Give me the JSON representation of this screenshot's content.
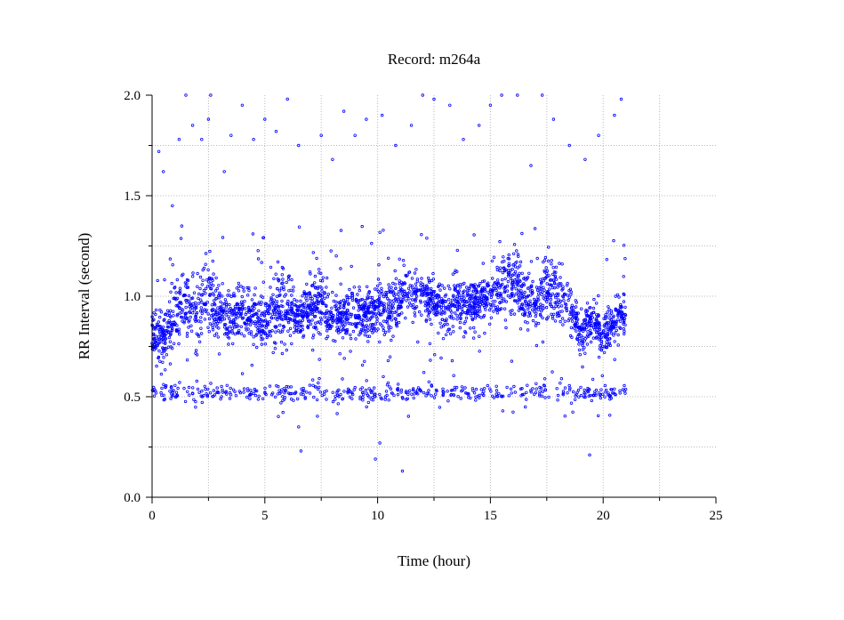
{
  "chart_data": {
    "type": "scatter",
    "title": "Record:  m264a",
    "xlabel": "Time (hour)",
    "ylabel": "RR Interval (second)",
    "xlim": [
      0,
      25
    ],
    "ylim": [
      0,
      2
    ],
    "x_ticks": [
      "0",
      "5",
      "10",
      "15",
      "20",
      "25"
    ],
    "y_ticks": [
      "0.0",
      "0.5",
      "1.0",
      "1.5",
      "2.0"
    ],
    "x_tick_values": [
      0,
      5,
      10,
      15,
      20,
      25
    ],
    "y_tick_values": [
      0,
      0.5,
      1.0,
      1.5,
      2.0
    ],
    "grid": true,
    "marker": "open-circle",
    "color": "#0000ff",
    "series": [
      {
        "profile": [
          [
            0.0,
            0.82,
            0.1
          ],
          [
            0.5,
            0.8,
            0.12
          ],
          [
            1.0,
            0.9,
            0.15
          ],
          [
            1.5,
            0.95,
            0.15
          ],
          [
            2.0,
            0.95,
            0.18
          ],
          [
            2.5,
            1.0,
            0.2
          ],
          [
            3.0,
            0.92,
            0.12
          ],
          [
            3.5,
            0.88,
            0.1
          ],
          [
            4.0,
            0.92,
            0.12
          ],
          [
            4.5,
            0.9,
            0.12
          ],
          [
            5.0,
            0.88,
            0.1
          ],
          [
            5.5,
            0.95,
            0.15
          ],
          [
            6.0,
            0.95,
            0.15
          ],
          [
            6.5,
            0.88,
            0.1
          ],
          [
            7.0,
            0.95,
            0.15
          ],
          [
            7.5,
            0.98,
            0.15
          ],
          [
            8.0,
            0.88,
            0.1
          ],
          [
            8.5,
            0.9,
            0.1
          ],
          [
            9.0,
            0.92,
            0.12
          ],
          [
            9.5,
            0.9,
            0.1
          ],
          [
            10.0,
            0.95,
            0.12
          ],
          [
            10.5,
            0.92,
            0.12
          ],
          [
            11.0,
            1.0,
            0.12
          ],
          [
            11.5,
            1.02,
            0.12
          ],
          [
            12.0,
            1.0,
            0.1
          ],
          [
            12.5,
            0.98,
            0.1
          ],
          [
            13.0,
            0.92,
            0.12
          ],
          [
            13.5,
            0.98,
            0.12
          ],
          [
            14.0,
            0.95,
            0.1
          ],
          [
            14.5,
            0.98,
            0.1
          ],
          [
            15.0,
            1.0,
            0.1
          ],
          [
            15.5,
            1.05,
            0.12
          ],
          [
            16.0,
            1.08,
            0.15
          ],
          [
            16.5,
            1.0,
            0.12
          ],
          [
            17.0,
            0.95,
            0.1
          ],
          [
            17.5,
            1.05,
            0.15
          ],
          [
            18.0,
            1.02,
            0.15
          ],
          [
            18.5,
            0.95,
            0.1
          ],
          [
            19.0,
            0.82,
            0.08
          ],
          [
            19.5,
            0.88,
            0.1
          ],
          [
            20.0,
            0.8,
            0.1
          ],
          [
            20.5,
            0.88,
            0.1
          ],
          [
            21.0,
            0.9,
            0.1
          ]
        ],
        "ectopic_band_center": 0.52,
        "outliers": [
          [
            0.3,
            1.72
          ],
          [
            0.5,
            1.62
          ],
          [
            0.9,
            1.45
          ],
          [
            1.2,
            1.78
          ],
          [
            1.5,
            2.0
          ],
          [
            1.8,
            1.85
          ],
          [
            2.2,
            1.78
          ],
          [
            2.5,
            1.88
          ],
          [
            2.6,
            2.0
          ],
          [
            3.2,
            1.62
          ],
          [
            3.5,
            1.8
          ],
          [
            4.0,
            1.95
          ],
          [
            4.5,
            1.78
          ],
          [
            5.0,
            1.88
          ],
          [
            5.5,
            1.82
          ],
          [
            6.0,
            1.98
          ],
          [
            6.5,
            1.75
          ],
          [
            7.5,
            1.8
          ],
          [
            8.0,
            1.68
          ],
          [
            8.5,
            1.92
          ],
          [
            9.0,
            1.8
          ],
          [
            9.5,
            1.88
          ],
          [
            10.2,
            1.9
          ],
          [
            10.8,
            1.75
          ],
          [
            11.5,
            1.85
          ],
          [
            12.0,
            2.0
          ],
          [
            12.5,
            1.98
          ],
          [
            13.2,
            1.95
          ],
          [
            13.8,
            1.78
          ],
          [
            14.5,
            1.85
          ],
          [
            15.0,
            1.95
          ],
          [
            15.5,
            2.0
          ],
          [
            16.2,
            2.0
          ],
          [
            16.8,
            1.65
          ],
          [
            17.3,
            2.0
          ],
          [
            17.8,
            1.88
          ],
          [
            18.5,
            1.75
          ],
          [
            19.2,
            1.68
          ],
          [
            19.8,
            1.8
          ],
          [
            20.5,
            1.9
          ],
          [
            20.8,
            1.98
          ],
          [
            6.6,
            0.23
          ],
          [
            6.5,
            0.35
          ],
          [
            9.9,
            0.19
          ],
          [
            10.1,
            0.27
          ],
          [
            11.1,
            0.13
          ],
          [
            19.4,
            0.21
          ]
        ]
      }
    ]
  }
}
